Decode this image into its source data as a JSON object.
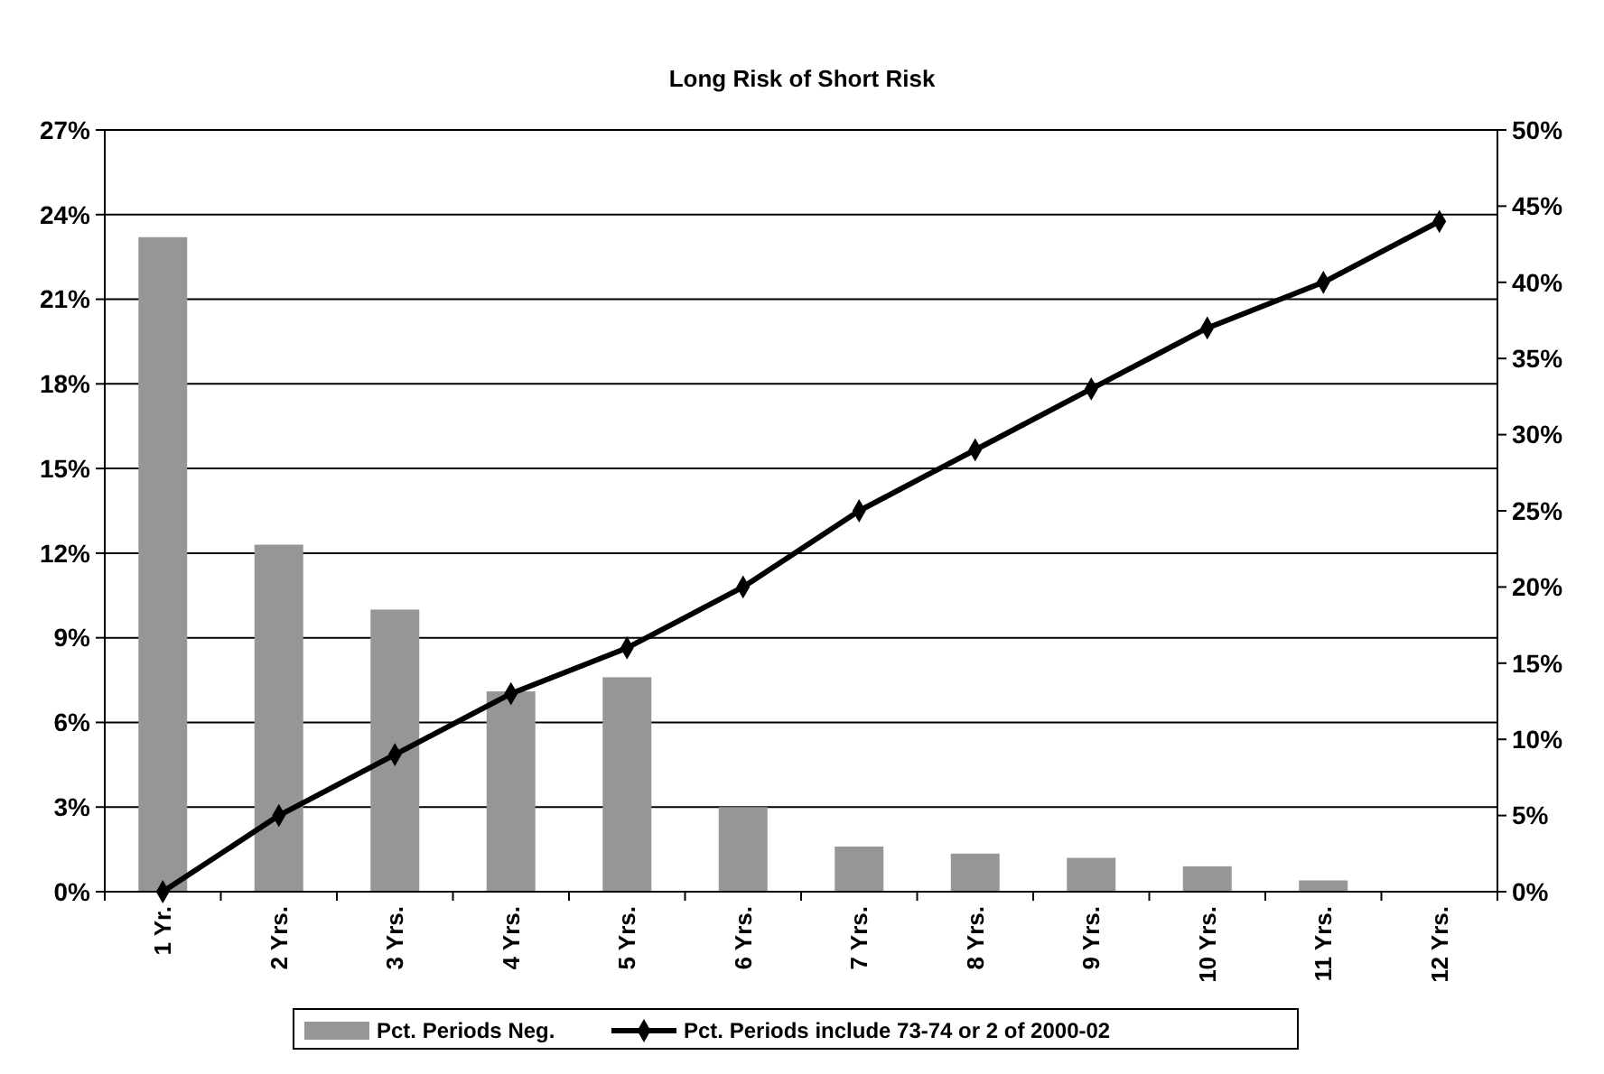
{
  "chart_data": {
    "type": "bar",
    "title": "Long Risk of Short Risk",
    "categories": [
      "1 Yr.",
      "2 Yrs.",
      "3 Yrs.",
      "4 Yrs.",
      "5 Yrs.",
      "6 Yrs.",
      "7 Yrs.",
      "8 Yrs.",
      "9 Yrs.",
      "10 Yrs.",
      "11 Yrs.",
      "12 Yrs."
    ],
    "series": [
      {
        "name": "Pct. Periods Neg.",
        "color": "#969696",
        "values": [
          23.2,
          12.3,
          10.0,
          7.1,
          7.6,
          3.0,
          1.6,
          1.35,
          1.2,
          0.9,
          0.4,
          0
        ]
      },
      {
        "name": "Pct. Periods include 73-74 or 2 of 2000-02",
        "type": "line",
        "axis": "y2",
        "color": "#000000",
        "marker": "diamond",
        "values": [
          0,
          5,
          9,
          13,
          16,
          20,
          25,
          29,
          33,
          37,
          40,
          44
        ]
      }
    ],
    "ylim": [
      0,
      27
    ],
    "yticks": [
      {
        "value": 0,
        "label": "0%"
      },
      {
        "value": 3,
        "label": "3%"
      },
      {
        "value": 6,
        "label": "6%"
      },
      {
        "value": 9,
        "label": "9%"
      },
      {
        "value": 12,
        "label": "12%"
      },
      {
        "value": 15,
        "label": "15%"
      },
      {
        "value": 18,
        "label": "18%"
      },
      {
        "value": 21,
        "label": "21%"
      },
      {
        "value": 24,
        "label": "24%"
      },
      {
        "value": 27,
        "label": "27%"
      }
    ],
    "y2lim": [
      0,
      50
    ],
    "y2ticks": [
      {
        "value": 0,
        "label": "0%"
      },
      {
        "value": 5,
        "label": "5%"
      },
      {
        "value": 10,
        "label": "10%"
      },
      {
        "value": 15,
        "label": "15%"
      },
      {
        "value": 20,
        "label": "20%"
      },
      {
        "value": 25,
        "label": "25%"
      },
      {
        "value": 30,
        "label": "30%"
      },
      {
        "value": 35,
        "label": "35%"
      },
      {
        "value": 40,
        "label": "40%"
      },
      {
        "value": 45,
        "label": "45%"
      },
      {
        "value": 50,
        "label": "50%"
      }
    ],
    "grid": "y",
    "legend": "bottom"
  }
}
